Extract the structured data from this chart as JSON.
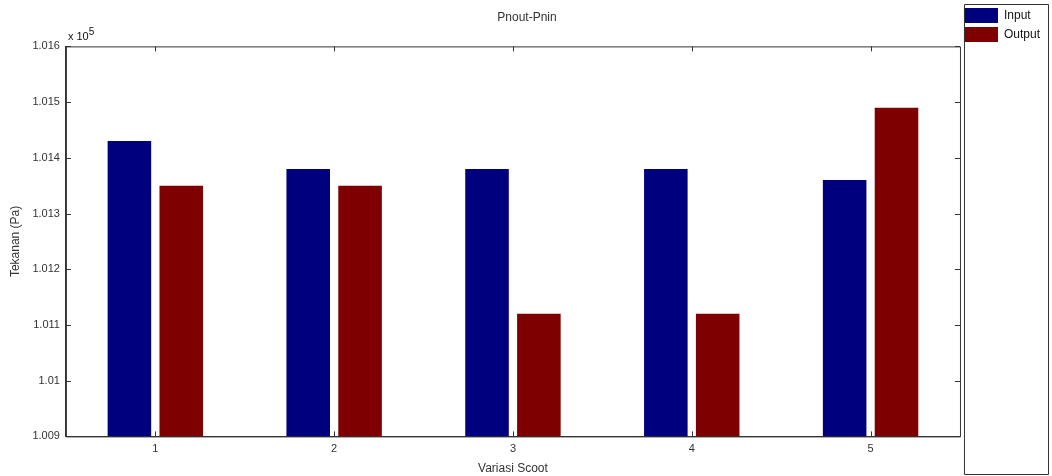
{
  "chart_data": {
    "type": "bar",
    "title": "Pnout-Pnin",
    "xlabel": "Variasi Scoot",
    "ylabel": "Tekanan (Pa)",
    "categories": [
      "1",
      "2",
      "3",
      "4",
      "5"
    ],
    "series": [
      {
        "name": "Input",
        "color": "#00007f",
        "values": [
          1.0143,
          1.0138,
          1.0138,
          1.0138,
          1.0136
        ]
      },
      {
        "name": "Output",
        "color": "#7f0000",
        "values": [
          1.0135,
          1.0135,
          1.0112,
          1.0112,
          1.0149
        ]
      }
    ],
    "ylim": [
      1.009,
      1.016
    ],
    "yticks": [
      1.009,
      1.01,
      1.011,
      1.012,
      1.013,
      1.014,
      1.015,
      1.016
    ],
    "annotations": [
      "x 10$^{5}$"
    ],
    "legend": "top right",
    "grid": false
  }
}
